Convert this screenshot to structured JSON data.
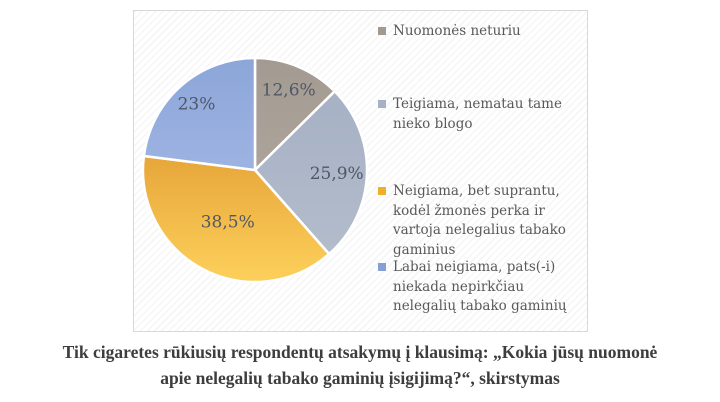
{
  "chart_data": {
    "type": "pie",
    "title": "",
    "legend_position": "right",
    "start_angle_deg": 0,
    "direction": "clockwise",
    "label_text_color": "#4f5766",
    "legend_text_color": "#595959",
    "slices": [
      {
        "label": "Nuomonės neturiu",
        "value": 12.6,
        "display_label": "12,6%",
        "color_top": "#a39a92",
        "color_bottom": "#aca49b",
        "legend_color": "#a29a91"
      },
      {
        "label": "Teigiama, nematau tame\nnieko blogo",
        "value": 25.9,
        "display_label": "25,9%",
        "color_top": "#a7b1c5",
        "color_bottom": "#b2bccb",
        "legend_color": "#a7b1c3"
      },
      {
        "label": "Neigiama, bet suprantu,\nkodėl žmonės perka ir\nvartoja nelegalius tabako\ngaminius",
        "value": 38.5,
        "display_label": "38,5%",
        "color_top": "#e7a63a",
        "color_bottom": "#fdd05b",
        "legend_color": "#edb02a"
      },
      {
        "label": "Labai neigiama, pats(-i)\nniekada nepirkčiau\nnelegalių tabako gaminių",
        "value": 23,
        "display_label": "23%",
        "color_top": "#8ca6d9",
        "color_bottom": "#9db3e2",
        "legend_color": "#84a0d4"
      }
    ]
  },
  "caption": {
    "text": "Tik cigaretes rūkiusių respondentų atsakymų į klausimą: „Kokia jūsų nuomonė\napie nelegalių tabako gaminių įsigijimą?“, skirstymas"
  }
}
